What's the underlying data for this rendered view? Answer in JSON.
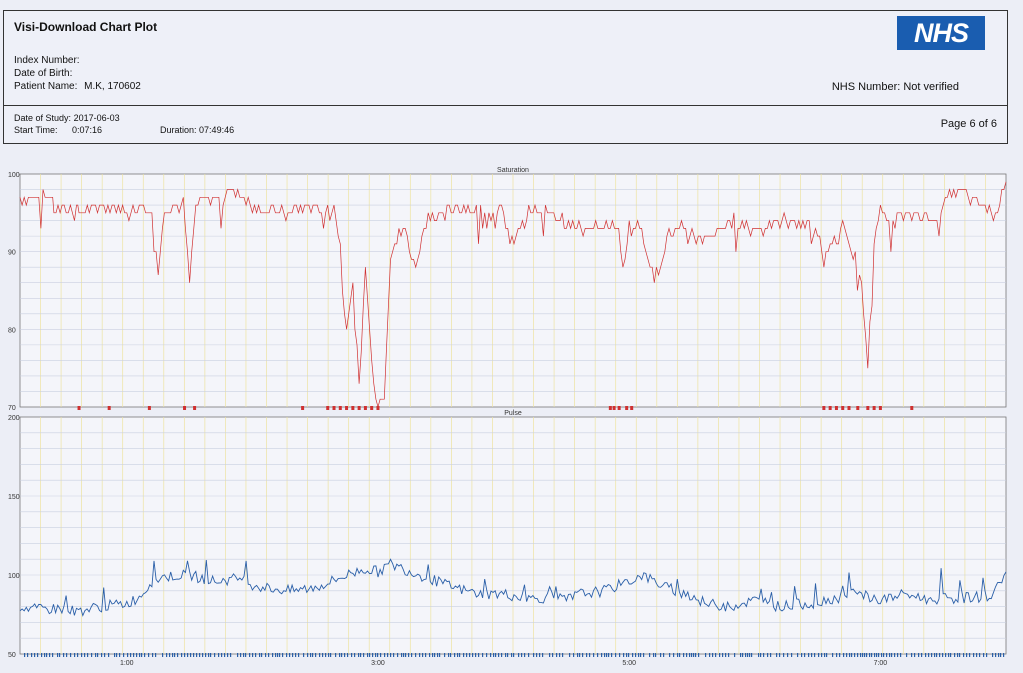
{
  "header": {
    "title": "Visi-Download Chart Plot",
    "index_number_label": "Index Number:",
    "dob_label": "Date of Birth:",
    "patient_name_label": "Patient Name:",
    "patient_name": "M.K, 170602",
    "logo_text": "NHS",
    "nhs_number": "NHS Number: Not verified"
  },
  "study": {
    "date_label": "Date of Study:",
    "date": "2017-06-03",
    "start_label": "Start Time:",
    "start": "0:07:16",
    "duration_label": "Duration:",
    "duration": "07:49:46",
    "page": "Page 6 of 6"
  },
  "colors": {
    "saturation": "#d03030",
    "pulse": "#2a5fa8",
    "grid_v": "#ede3a0",
    "grid_h": "#c9cfe0"
  },
  "chart_data": [
    {
      "type": "line",
      "title": "Saturation",
      "ylim": [
        70,
        100
      ],
      "yticks": [
        "100",
        "90",
        "80",
        "70"
      ],
      "x_unit": "hours",
      "xlim": [
        0.15,
        8.0
      ],
      "series": [
        {
          "x": [
            0.15,
            0.4,
            0.42,
            0.6,
            0.62,
            0.8,
            0.9,
            1.0,
            1.1,
            1.2,
            1.25,
            1.3,
            1.45,
            1.5,
            1.55,
            1.7,
            1.8,
            1.95,
            2.0,
            2.05,
            2.15,
            2.25,
            2.3,
            2.45,
            2.55,
            2.65,
            2.7,
            2.75,
            2.8,
            2.85,
            2.9,
            2.95,
            3.0,
            3.05,
            3.1,
            3.2,
            3.3,
            3.4,
            3.5,
            3.6,
            3.8,
            4.0,
            4.05,
            4.2,
            4.4,
            4.6,
            4.8,
            4.9,
            4.95,
            5.0,
            5.1,
            5.2,
            5.3,
            5.4,
            5.6,
            5.8,
            6.0,
            6.2,
            6.4,
            6.5,
            6.55,
            6.6,
            6.7,
            6.8,
            6.85,
            6.9,
            6.95,
            7.0,
            7.1,
            7.3,
            7.4,
            7.5,
            7.6,
            7.7,
            7.8,
            7.9,
            8.0
          ],
          "y": [
            97,
            97,
            95,
            96,
            95,
            96,
            96,
            95,
            96,
            96,
            87,
            96,
            96,
            86,
            96,
            97,
            98,
            97,
            96,
            96,
            95,
            95,
            95,
            96,
            95,
            96,
            91,
            81,
            85,
            73,
            88,
            76,
            70,
            72,
            90,
            93,
            88,
            95,
            94,
            96,
            95,
            95,
            91,
            95,
            95,
            93,
            93,
            94,
            88,
            93,
            93,
            86,
            92,
            93,
            91,
            94,
            93,
            94,
            94,
            92,
            89,
            91,
            93,
            89,
            86,
            76,
            92,
            95,
            94,
            95,
            94,
            96,
            98,
            97,
            96,
            95,
            99
          ]
        }
      ],
      "red_flag_marks": [
        0.62,
        0.86,
        1.18,
        1.46,
        1.54,
        2.4,
        2.6,
        2.65,
        2.7,
        2.75,
        2.8,
        2.85,
        2.9,
        2.95,
        3.0,
        4.85,
        4.88,
        4.92,
        4.98,
        5.02,
        6.55,
        6.6,
        6.65,
        6.7,
        6.75,
        6.82,
        6.9,
        6.95,
        7.0,
        7.25
      ]
    },
    {
      "type": "line",
      "title": "Pulse",
      "ylim": [
        50,
        200
      ],
      "yticks": [
        "200",
        "150",
        "100",
        "50"
      ],
      "xticks": [
        "1:00",
        "3:00",
        "5:00",
        "7:00"
      ],
      "x_unit": "hours",
      "xlim": [
        0.15,
        8.0
      ],
      "series": [
        {
          "x": [
            0.15,
            0.3,
            0.45,
            0.6,
            0.8,
            1.0,
            1.1,
            1.2,
            1.3,
            1.5,
            1.7,
            1.9,
            2.0,
            2.1,
            2.3,
            2.5,
            2.6,
            2.75,
            2.9,
            3.0,
            3.1,
            3.2,
            3.4,
            3.5,
            3.6,
            3.7,
            3.8,
            4.0,
            4.2,
            4.4,
            4.5,
            4.6,
            4.8,
            5.0,
            5.1,
            5.3,
            5.5,
            5.6,
            5.8,
            6.0,
            6.2,
            6.4,
            6.5,
            6.6,
            6.7,
            6.8,
            6.9,
            7.0,
            7.2,
            7.4,
            7.5,
            7.6,
            7.7,
            7.8,
            7.9,
            8.0
          ],
          "y": [
            80,
            78,
            79,
            77,
            80,
            82,
            86,
            96,
            99,
            100,
            96,
            98,
            94,
            92,
            90,
            92,
            95,
            100,
            104,
            102,
            107,
            104,
            98,
            95,
            92,
            90,
            88,
            88,
            85,
            86,
            84,
            88,
            90,
            96,
            100,
            92,
            87,
            82,
            80,
            84,
            80,
            82,
            82,
            85,
            86,
            88,
            86,
            84,
            88,
            84,
            86,
            85,
            86,
            86,
            88,
            102
          ]
        }
      ],
      "blue_flag_marks": "continuous row along baseline"
    }
  ]
}
